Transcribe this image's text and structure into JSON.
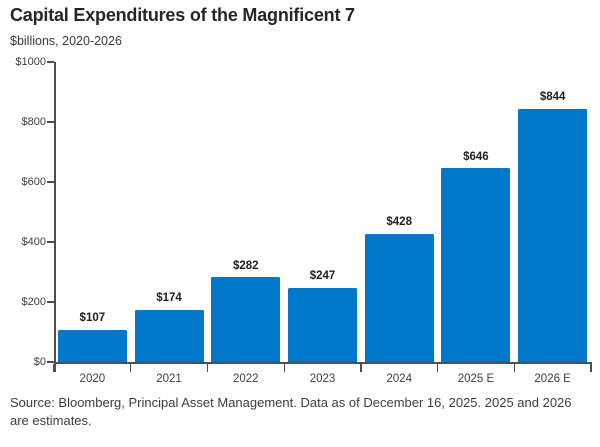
{
  "page": {
    "title": "Capital Expenditures of the Magnificent 7",
    "subtitle": "$billions, 2020-2026",
    "source": "Source: Bloomberg, Principal Asset Management. Data as of December 16, 2025. 2025 and 2026 are estimates."
  },
  "colors": {
    "bar": "#0077C8",
    "axis": "#4F4F4F",
    "title_text": "#262626",
    "subtitle_text": "#3A3A3A",
    "tick_label_text": "#3F3F3F",
    "value_label_text": "#1F1F1F",
    "source_text": "#3D3D3D",
    "background": "#FFFFFF"
  },
  "chart_data": {
    "type": "bar",
    "title": "Capital Expenditures of the Magnificent 7",
    "subtitle": "$billions, 2020-2026",
    "categories": [
      "2020",
      "2021",
      "2022",
      "2023",
      "2024",
      "2025 E",
      "2026 E"
    ],
    "values": [
      107,
      174,
      282,
      247,
      428,
      646,
      844
    ],
    "value_labels": [
      "$107",
      "$174",
      "$282",
      "$247",
      "$428",
      "$646",
      "$844"
    ],
    "xlabel": "",
    "ylabel": "$billions",
    "ylim": [
      0,
      1000
    ],
    "yticks": [
      0,
      200,
      400,
      600,
      800,
      1000
    ],
    "ytick_labels": [
      "$0",
      "$200",
      "$400",
      "$600",
      "$800",
      "$1000"
    ],
    "grid": false,
    "legend": false,
    "bar_color": "#0077C8"
  }
}
